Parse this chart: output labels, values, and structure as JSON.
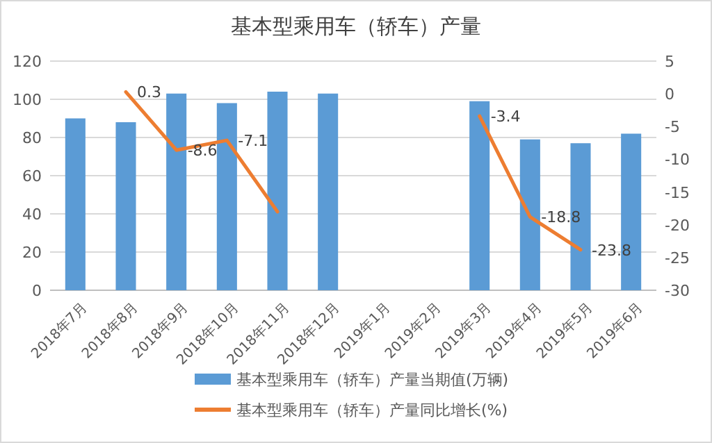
{
  "chart_data": {
    "type": "bar",
    "title": "基本型乘用车（轿车）产量",
    "categories": [
      "2018年7月",
      "2018年8月",
      "2018年9月",
      "2018年10月",
      "2018年11月",
      "2018年12月",
      "2019年1月",
      "2019年2月",
      "2019年3月",
      "2019年4月",
      "2019年5月",
      "2019年6月"
    ],
    "series": [
      {
        "name": "基本型乘用车（轿车）产量当期值(万辆)",
        "color": "#5b9bd5",
        "values": [
          90,
          88,
          103,
          98,
          104,
          103,
          null,
          null,
          99,
          79,
          77,
          82
        ]
      },
      {
        "name": "基本型乘用车（轿车）产量同比增长(%)",
        "type": "line",
        "axis": "y2",
        "color": "#ed7d31",
        "values": [
          null,
          0.3,
          -8.6,
          -7.1,
          -18,
          null,
          null,
          null,
          -3.4,
          -18.8,
          -23.8,
          null
        ],
        "value_labels": [
          null,
          "0.3",
          "-8.6",
          "-7.1",
          null,
          null,
          null,
          null,
          "-3.4",
          "-18.8",
          "-23.8",
          null
        ]
      }
    ],
    "ylim": [
      0,
      120
    ],
    "yticks": [
      0,
      20,
      40,
      60,
      80,
      100,
      120
    ],
    "y2lim": [
      -30,
      5
    ],
    "y2ticks": [
      -30,
      -25,
      -20,
      -15,
      -10,
      -5,
      0,
      5
    ],
    "grid": "y",
    "legend": "bottom",
    "marker": "none",
    "line_style": "solid"
  }
}
